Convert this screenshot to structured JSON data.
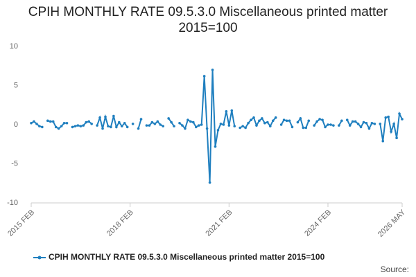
{
  "chart_data": {
    "type": "line",
    "title": "CPIH MONTHLY RATE 09.5.3.0 Miscellaneous printed matter 2015=100",
    "source": "Source:",
    "categories": [
      "2015 FEB",
      null,
      null,
      null,
      null,
      null,
      null,
      null,
      null,
      null,
      null,
      null,
      null,
      null,
      null,
      null,
      null,
      null,
      null,
      null,
      null,
      null,
      null,
      null,
      null,
      null,
      null,
      null,
      null,
      null,
      null,
      null,
      null,
      null,
      null,
      null,
      "2018 FEB",
      null,
      null,
      null,
      null,
      null,
      null,
      null,
      null,
      null,
      null,
      null,
      null,
      null,
      null,
      null,
      null,
      null,
      null,
      null,
      null,
      null,
      null,
      null,
      null,
      null,
      null,
      null,
      null,
      null,
      null,
      null,
      null,
      null,
      null,
      null,
      "2021 FEB",
      null,
      null,
      null,
      null,
      null,
      null,
      null,
      null,
      null,
      null,
      null,
      null,
      null,
      null,
      null,
      null,
      null,
      null,
      null,
      null,
      null,
      null,
      null,
      null,
      null,
      null,
      null,
      null,
      null,
      null,
      null,
      null,
      null,
      null,
      null,
      "2024 FEB",
      null,
      null,
      null,
      null,
      null,
      null,
      null,
      null,
      null,
      null,
      null,
      null,
      null,
      null,
      null,
      null,
      null,
      null,
      null,
      null,
      null,
      null,
      null,
      null,
      null,
      null,
      "2026 MAY"
    ],
    "series": [
      {
        "name": "CPIH MONTHLY RATE 09.5.3.0 Miscellaneous printed matter 2015=100",
        "color": "#1f7fbf",
        "values": [
          0.2,
          0.4,
          0.1,
          -0.2,
          -0.3,
          null,
          0.5,
          0.4,
          0.4,
          -0.3,
          -0.5,
          -0.2,
          0.2,
          0.2,
          null,
          -0.3,
          -0.2,
          -0.1,
          -0.2,
          -0.1,
          0.3,
          0.4,
          0.1,
          null,
          -0.1,
          0.9,
          -0.5,
          1.0,
          -0.2,
          -0.3,
          1.1,
          -0.3,
          0.3,
          -0.2,
          0.2,
          -0.3,
          null,
          0.1,
          null,
          -0.5,
          0.7,
          null,
          -0.1,
          -0.1,
          0.3,
          0.1,
          0.4,
          0.0,
          -0.2,
          null,
          0.8,
          0.3,
          -0.2,
          null,
          0.2,
          -0.1,
          -0.5,
          0.6,
          0.4,
          0.3,
          -0.3,
          -0.1,
          0.0,
          6.2,
          -0.5,
          -7.4,
          7.0,
          -2.8,
          -0.7,
          0.1,
          0.0,
          1.7,
          -0.1,
          1.8,
          -0.2,
          null,
          -0.4,
          -0.2,
          -0.4,
          0.2,
          0.6,
          0.9,
          -0.1,
          0.5,
          0.8,
          0.2,
          0.3,
          -0.2,
          0.5,
          0.9,
          null,
          0.0,
          0.6,
          0.5,
          0.5,
          -0.3,
          null,
          0.3,
          0.8,
          -0.4,
          -0.4,
          0.5,
          null,
          -0.1,
          0.4,
          0.7,
          0.6,
          -0.3,
          0.0,
          0.0,
          -0.1,
          null,
          -0.1,
          0.5,
          null,
          0.6,
          -0.1,
          0.4,
          0.4,
          0.1,
          -0.3,
          0.3,
          0.2,
          -0.5,
          0.2,
          0.1,
          null,
          0.1,
          -2.1,
          0.9,
          1.0,
          -0.9,
          0.1,
          -1.7,
          1.4,
          0.7
        ]
      }
    ],
    "ylim": [
      -10,
      10
    ],
    "yticks": [
      -10,
      -5,
      0,
      5,
      10
    ],
    "grid": false
  }
}
